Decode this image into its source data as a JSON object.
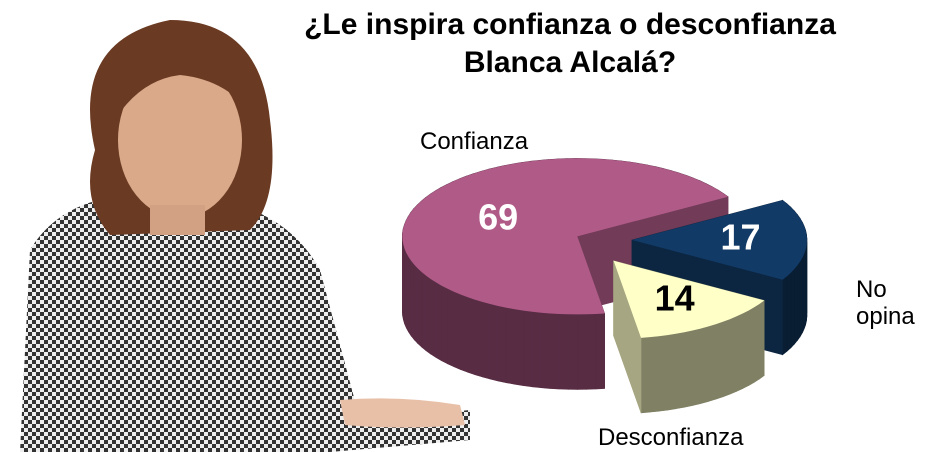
{
  "chart_data": {
    "type": "pie",
    "three_d": true,
    "exploded": true,
    "title": "¿Le inspira confianza o desconfianza Blanca Alcalá?",
    "categories": [
      "Confianza",
      "Desconfianza",
      "No opina"
    ],
    "values": [
      69,
      17,
      14
    ],
    "colors": [
      "#b05a88",
      "#123a66",
      "#ffffc8"
    ]
  }
}
